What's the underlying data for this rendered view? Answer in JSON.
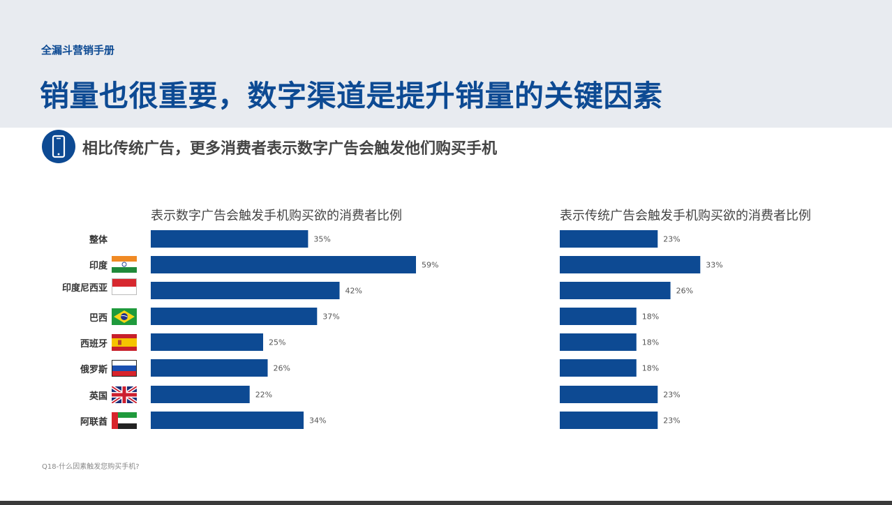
{
  "header": {
    "kicker": "全漏斗营销手册",
    "title": "销量也很重要，数字渠道是提升销量的关键因素",
    "subtitle": "相比传统广告，更多消费者表示数字广告会触发他们购买手机",
    "icon": "smartphone-icon"
  },
  "rows": [
    {
      "label": "整体",
      "flag": null
    },
    {
      "label": "印度",
      "flag": "india-flag-icon"
    },
    {
      "label": "印度尼西亚",
      "flag": "indonesia-flag-icon"
    },
    {
      "label": "巴西",
      "flag": "brazil-flag-icon"
    },
    {
      "label": "西班牙",
      "flag": "spain-flag-icon"
    },
    {
      "label": "俄罗斯",
      "flag": "russia-flag-icon"
    },
    {
      "label": "英国",
      "flag": "uk-flag-icon"
    },
    {
      "label": "阿联酋",
      "flag": "uae-flag-icon"
    }
  ],
  "chart_data": [
    {
      "type": "bar",
      "orientation": "horizontal",
      "title": "表示数字广告会触发手机购买欲的消费者比例",
      "categories": [
        "整体",
        "印度",
        "印度尼西亚",
        "巴西",
        "西班牙",
        "俄罗斯",
        "英国",
        "阿联酋"
      ],
      "values": [
        35,
        59,
        42,
        37,
        25,
        26,
        22,
        34
      ],
      "value_labels": [
        "35%",
        "59%",
        "42%",
        "37%",
        "25%",
        "26%",
        "22%",
        "34%"
      ],
      "unit": "%",
      "grid": false,
      "color": "#0d4a93"
    },
    {
      "type": "bar",
      "orientation": "horizontal",
      "title": "表示传统广告会触发手机购买欲的消费者比例",
      "categories": [
        "整体",
        "印度",
        "印度尼西亚",
        "巴西",
        "西班牙",
        "俄罗斯",
        "英国",
        "阿联酋"
      ],
      "values": [
        23,
        33,
        26,
        18,
        18,
        18,
        23,
        23
      ],
      "value_labels": [
        "23%",
        "33%",
        "26%",
        "18%",
        "18%",
        "18%",
        "23%",
        "23%"
      ],
      "unit": "%",
      "grid": false,
      "color": "#0d4a93"
    }
  ],
  "footnote": "Q18-什么因素触发您购买手机?",
  "colors": {
    "brand": "#0d4a93",
    "header_bg": "#e8ebf0"
  }
}
